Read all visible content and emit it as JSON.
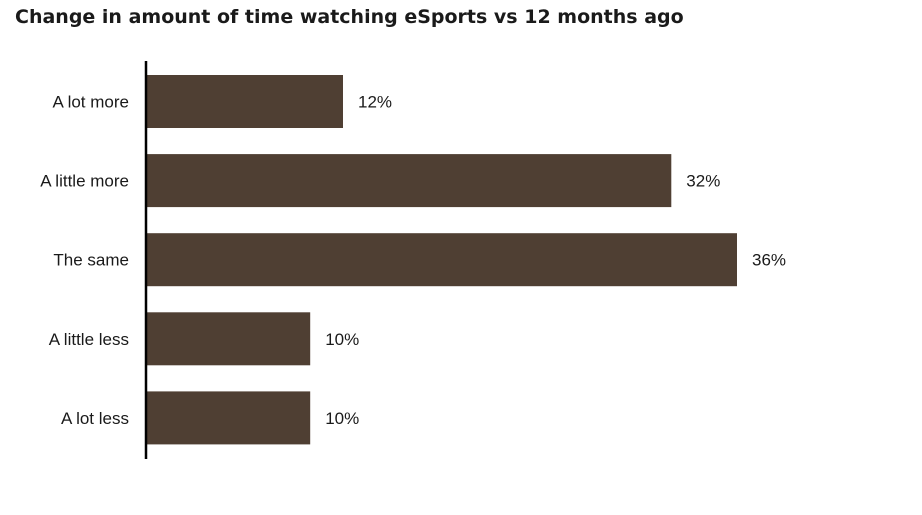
{
  "chart_data": {
    "type": "bar",
    "orientation": "horizontal",
    "title": "Change in amount of time watching eSports vs 12 months ago",
    "categories": [
      "A lot more",
      "A little more",
      "The same",
      "A little less",
      "A lot less"
    ],
    "values": [
      12,
      32,
      36,
      10,
      10
    ],
    "data_labels": [
      "12%",
      "32%",
      "36%",
      "10%",
      "10%"
    ],
    "unit": "%",
    "xlim": [
      0,
      36
    ],
    "grid": false,
    "legend": "none",
    "bar_color": "#4f3f33",
    "axis_color": "#000000"
  }
}
